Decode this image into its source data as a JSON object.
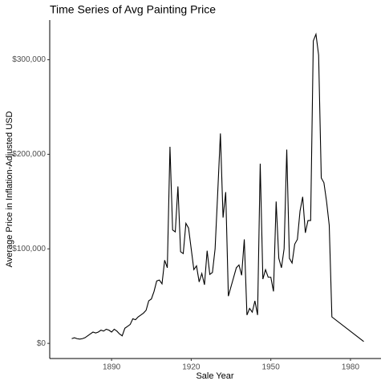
{
  "chart_data": {
    "type": "line",
    "title": "Time Series of Avg Painting Price",
    "xlabel": "Sale Year",
    "ylabel": "Average Price in Inflation-Adjusted USD",
    "x": [
      1875,
      1876,
      1877,
      1878,
      1879,
      1880,
      1881,
      1882,
      1883,
      1884,
      1885,
      1886,
      1887,
      1888,
      1889,
      1890,
      1891,
      1892,
      1893,
      1894,
      1895,
      1896,
      1897,
      1898,
      1899,
      1900,
      1901,
      1902,
      1903,
      1904,
      1905,
      1906,
      1907,
      1908,
      1909,
      1910,
      1911,
      1912,
      1913,
      1914,
      1915,
      1916,
      1917,
      1918,
      1919,
      1920,
      1921,
      1922,
      1923,
      1924,
      1925,
      1926,
      1927,
      1928,
      1929,
      1930,
      1931,
      1932,
      1933,
      1934,
      1935,
      1936,
      1937,
      1938,
      1939,
      1940,
      1941,
      1942,
      1943,
      1944,
      1945,
      1946,
      1947,
      1948,
      1949,
      1950,
      1951,
      1952,
      1953,
      1954,
      1955,
      1956,
      1957,
      1958,
      1959,
      1960,
      1961,
      1962,
      1963,
      1964,
      1965,
      1966,
      1967,
      1968,
      1969,
      1970,
      1971,
      1972,
      1973,
      1985
    ],
    "series": [
      {
        "name": "Average Price",
        "color": "#000000",
        "values": [
          5000,
          6000,
          5000,
          4500,
          5000,
          6000,
          8000,
          10000,
          12000,
          11000,
          12000,
          14000,
          13000,
          15000,
          14000,
          12000,
          15000,
          13000,
          10000,
          8000,
          16000,
          18000,
          20000,
          26000,
          25000,
          28000,
          30000,
          32000,
          35000,
          45000,
          47000,
          55000,
          66000,
          67000,
          63000,
          88000,
          80000,
          208000,
          120000,
          118000,
          166000,
          97000,
          95000,
          127000,
          122000,
          100000,
          78000,
          82000,
          65000,
          74000,
          62000,
          98000,
          73000,
          75000,
          100000,
          160000,
          222000,
          133000,
          160000,
          50000,
          60000,
          70000,
          80000,
          83000,
          72000,
          110000,
          30000,
          37000,
          33000,
          45000,
          30000,
          190000,
          68000,
          78000,
          70000,
          70000,
          55000,
          150000,
          90000,
          80000,
          100000,
          205000,
          90000,
          85000,
          105000,
          110000,
          140000,
          155000,
          117000,
          130000,
          130000,
          320000,
          327000,
          305000,
          175000,
          170000,
          150000,
          125000,
          28000,
          2000
        ]
      }
    ],
    "xlim": [
      1866.7,
      1991.5
    ],
    "xticks": [
      1890,
      1920,
      1950,
      1980
    ],
    "ylim": [
      -16000,
      342000
    ],
    "yticks": [
      {
        "value": 0,
        "label": "$0"
      },
      {
        "value": 100000,
        "label": "$100,000"
      },
      {
        "value": 200000,
        "label": "$200,000"
      },
      {
        "value": 300000,
        "label": "$300,000"
      }
    ],
    "grid": false
  }
}
